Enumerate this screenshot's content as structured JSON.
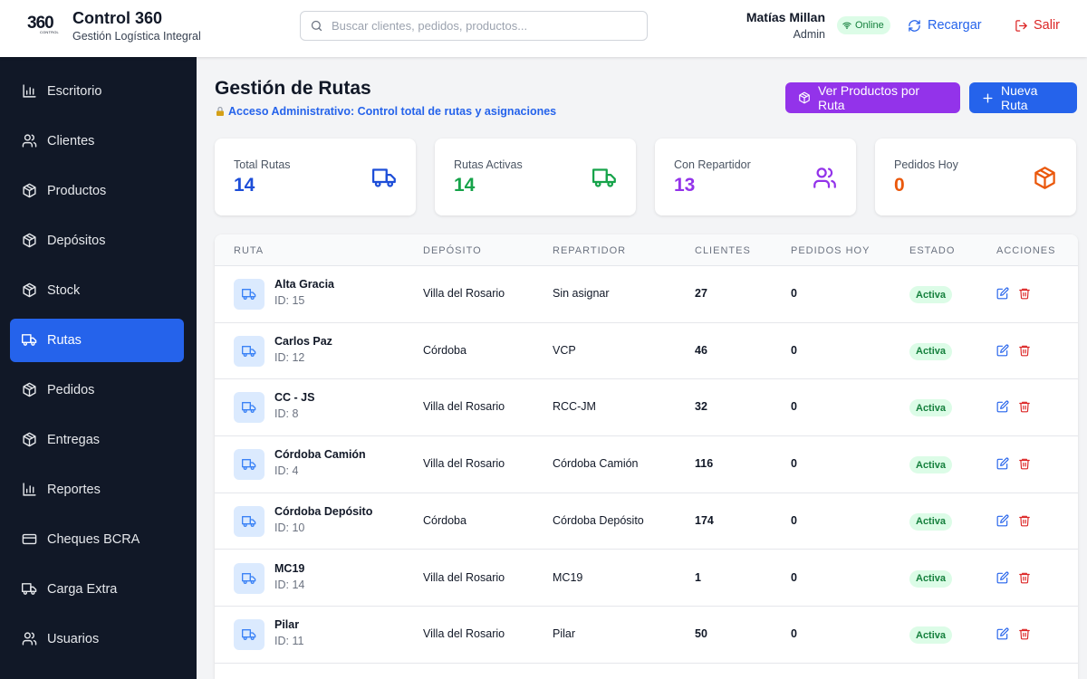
{
  "header": {
    "logo_text": "360",
    "logo_subtext": "CONTROL",
    "app_title": "Control 360",
    "app_subtitle": "Gestión Logística Integral",
    "search_placeholder": "Buscar clientes, pedidos, productos...",
    "search_value": "",
    "user_name": "Matías Millan",
    "user_role": "Admin",
    "online_label": "Online",
    "reload_label": "Recargar",
    "logout_label": "Salir"
  },
  "sidebar": {
    "items": [
      {
        "label": "Escritorio",
        "icon": "bar-chart-icon",
        "active": false
      },
      {
        "label": "Clientes",
        "icon": "users-icon",
        "active": false
      },
      {
        "label": "Productos",
        "icon": "box-icon",
        "active": false
      },
      {
        "label": "Depósitos",
        "icon": "box-icon",
        "active": false
      },
      {
        "label": "Stock",
        "icon": "box-icon",
        "active": false
      },
      {
        "label": "Rutas",
        "icon": "truck-icon",
        "active": true
      },
      {
        "label": "Pedidos",
        "icon": "box-icon",
        "active": false
      },
      {
        "label": "Entregas",
        "icon": "box-icon",
        "active": false
      },
      {
        "label": "Reportes",
        "icon": "bar-chart-icon",
        "active": false
      },
      {
        "label": "Cheques BCRA",
        "icon": "credit-card-icon",
        "active": false
      },
      {
        "label": "Carga Extra",
        "icon": "truck-icon",
        "active": false
      },
      {
        "label": "Usuarios",
        "icon": "users-icon",
        "active": false
      }
    ]
  },
  "main": {
    "title": "Gestión de Rutas",
    "note": "Acceso Administrativo: Control total de rutas y asignaciones",
    "btn_products": "Ver Productos por Ruta",
    "btn_new": "Nueva Ruta",
    "cards": [
      {
        "label": "Total Rutas",
        "value": "14",
        "color": "#1d4ed8",
        "icon": "truck-icon"
      },
      {
        "label": "Rutas Activas",
        "value": "14",
        "color": "#16a34a",
        "icon": "truck-icon"
      },
      {
        "label": "Con Repartidor",
        "value": "13",
        "color": "#9333ea",
        "icon": "users-icon"
      },
      {
        "label": "Pedidos Hoy",
        "value": "0",
        "color": "#ea580c",
        "icon": "box-icon"
      }
    ],
    "table": {
      "headers": [
        "Ruta",
        "Depósito",
        "Repartidor",
        "Clientes",
        "Pedidos Hoy",
        "Estado",
        "Acciones"
      ],
      "rows": [
        {
          "name": "Alta Gracia",
          "id": "ID: 15",
          "deposito": "Villa del Rosario",
          "repartidor": "Sin asignar",
          "clientes": "27",
          "pedidos": "0",
          "estado": "Activa"
        },
        {
          "name": "Carlos Paz",
          "id": "ID: 12",
          "deposito": "Córdoba",
          "repartidor": "VCP",
          "clientes": "46",
          "pedidos": "0",
          "estado": "Activa"
        },
        {
          "name": "CC - JS",
          "id": "ID: 8",
          "deposito": "Villa del Rosario",
          "repartidor": "RCC-JM",
          "clientes": "32",
          "pedidos": "0",
          "estado": "Activa"
        },
        {
          "name": "Córdoba Camión",
          "id": "ID: 4",
          "deposito": "Villa del Rosario",
          "repartidor": "Córdoba Camión",
          "clientes": "116",
          "pedidos": "0",
          "estado": "Activa"
        },
        {
          "name": "Córdoba Depósito",
          "id": "ID: 10",
          "deposito": "Córdoba",
          "repartidor": "Córdoba Depósito",
          "clientes": "174",
          "pedidos": "0",
          "estado": "Activa"
        },
        {
          "name": "MC19",
          "id": "ID: 14",
          "deposito": "Villa del Rosario",
          "repartidor": "MC19",
          "clientes": "1",
          "pedidos": "0",
          "estado": "Activa"
        },
        {
          "name": "Pilar",
          "id": "ID: 11",
          "deposito": "Villa del Rosario",
          "repartidor": "Pilar",
          "clientes": "50",
          "pedidos": "0",
          "estado": "Activa"
        }
      ]
    }
  },
  "colors": {
    "accent": "#2563eb",
    "purple": "#9333ea",
    "sidebar_bg": "#111827",
    "danger": "#dc2626",
    "success": "#16a34a"
  }
}
